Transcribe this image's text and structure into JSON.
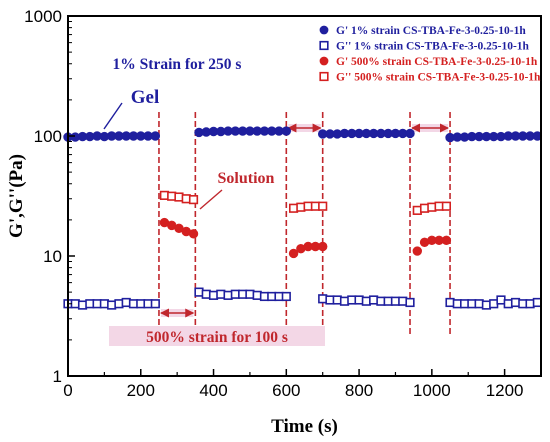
{
  "chart_data": {
    "type": "scatter",
    "xlabel": "Time (s)",
    "ylabel": "G',G''(Pa)",
    "xlim": [
      0,
      1300
    ],
    "ylim": [
      1,
      1000
    ],
    "yscale": "log",
    "xticks": [
      0,
      200,
      400,
      600,
      800,
      1000,
      1200
    ],
    "yticks": [
      1,
      10,
      100,
      1000
    ],
    "ytick_labels": [
      "1",
      "10",
      "100",
      "1000"
    ],
    "legend_position": "top-right",
    "series": [
      {
        "name": "G'  1% strain CS-TBA-Fe-3-0.25-10-1h",
        "marker": "filled-circle",
        "color": "#1f1f9e",
        "x": [
          0,
          20,
          40,
          60,
          80,
          100,
          120,
          140,
          160,
          180,
          200,
          220,
          240,
          360,
          380,
          400,
          420,
          440,
          460,
          480,
          500,
          520,
          540,
          560,
          580,
          600,
          700,
          720,
          740,
          760,
          780,
          800,
          820,
          840,
          860,
          880,
          900,
          920,
          940,
          1050,
          1070,
          1090,
          1110,
          1130,
          1150,
          1170,
          1190,
          1210,
          1230,
          1250,
          1270,
          1290
        ],
        "y": [
          98,
          98,
          99,
          99,
          100,
          99,
          100,
          100,
          100,
          100,
          100,
          100,
          100,
          107,
          108,
          109,
          109,
          110,
          110,
          110,
          110,
          110,
          110,
          110,
          110,
          110,
          104,
          104,
          104,
          105,
          105,
          105,
          105,
          105,
          105,
          105,
          105,
          105,
          105,
          97,
          98,
          98,
          99,
          99,
          99,
          99,
          99,
          100,
          100,
          100,
          100,
          100
        ]
      },
      {
        "name": "G'' 1% strain CS-TBA-Fe-3-0.25-10-1h",
        "marker": "open-square",
        "color": "#1f1f9e",
        "x": [
          0,
          20,
          40,
          60,
          80,
          100,
          120,
          140,
          160,
          180,
          200,
          220,
          240,
          360,
          380,
          400,
          420,
          440,
          460,
          480,
          500,
          520,
          540,
          560,
          580,
          600,
          700,
          720,
          740,
          760,
          780,
          800,
          820,
          840,
          860,
          880,
          900,
          920,
          940,
          1050,
          1070,
          1090,
          1110,
          1130,
          1150,
          1170,
          1190,
          1210,
          1230,
          1250,
          1270,
          1290
        ],
        "y": [
          4.0,
          4.0,
          3.9,
          4.0,
          4.0,
          4.0,
          3.9,
          4.0,
          4.1,
          4.0,
          4.0,
          4.0,
          4.0,
          5.0,
          4.8,
          4.7,
          4.8,
          4.7,
          4.8,
          4.8,
          4.8,
          4.7,
          4.6,
          4.6,
          4.6,
          4.6,
          4.4,
          4.3,
          4.3,
          4.2,
          4.3,
          4.3,
          4.2,
          4.3,
          4.2,
          4.2,
          4.2,
          4.2,
          4.1,
          4.1,
          4.0,
          4.0,
          4.0,
          4.0,
          3.9,
          4.0,
          4.3,
          4.0,
          4.1,
          4.0,
          4.0,
          4.1
        ]
      },
      {
        "name": "G'  500% strain CS-TBA-Fe-3-0.25-10-1h",
        "marker": "filled-circle",
        "color": "#d42020",
        "x": [
          265,
          285,
          305,
          325,
          345,
          620,
          640,
          660,
          680,
          700,
          960,
          980,
          1000,
          1020,
          1040
        ],
        "y": [
          19,
          18,
          17,
          16,
          15.3,
          10.5,
          11.5,
          12,
          12,
          12,
          11,
          13,
          13.5,
          13.5,
          13.5
        ]
      },
      {
        "name": "G'' 500% strain CS-TBA-Fe-3-0.25-10-1h",
        "marker": "open-square",
        "color": "#d42020",
        "x": [
          265,
          285,
          305,
          325,
          345,
          620,
          640,
          660,
          680,
          700,
          960,
          980,
          1000,
          1020,
          1040
        ],
        "y": [
          32,
          31.5,
          31,
          30,
          29.5,
          25,
          25.5,
          26,
          26,
          26,
          24,
          25,
          25.5,
          26,
          26
        ]
      }
    ],
    "annotations": {
      "gel": "Gel",
      "solution": "Solution",
      "low_strain": "1% Strain for 250 s",
      "high_strain": "500% strain for 100 s"
    },
    "step_boundaries": [
      250,
      350,
      600,
      700,
      940,
      1050
    ],
    "color_low": "#1f1f9e",
    "color_high": "#c0272d"
  }
}
